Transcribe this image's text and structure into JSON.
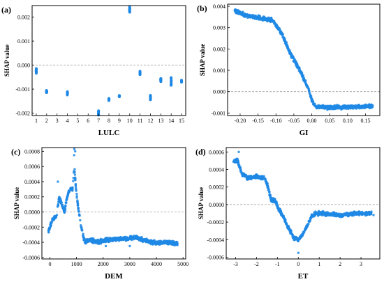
{
  "colors": {
    "point": "#1e88e5",
    "zero_line": "#9e9e9e",
    "axis": "#000000"
  },
  "chart_data": [
    {
      "id": "a",
      "type": "scatter",
      "panel_label": "(a)",
      "xlabel": "LULC",
      "ylabel": "SHAP value",
      "xlim": [
        0.6,
        15.4
      ],
      "ylim": [
        -0.0021,
        0.00248
      ],
      "xticks": [
        1,
        2,
        3,
        4,
        5,
        6,
        7,
        8,
        9,
        10,
        11,
        12,
        13,
        14,
        15
      ],
      "xtick_labels": [
        "1",
        "2",
        "3",
        "4",
        "5",
        "6",
        "7",
        "8",
        "9",
        "10",
        "11",
        "12",
        "13",
        "14",
        "15"
      ],
      "yticks": [
        -0.002,
        -0.001,
        0.0,
        0.001,
        0.002
      ],
      "ytick_labels": [
        "-0.002",
        "-0.001",
        "0.000",
        "0.001",
        "0.002"
      ],
      "zero_line": true,
      "clusters": [
        {
          "x": 1,
          "y_min": -0.00035,
          "y_max": -0.00013
        },
        {
          "x": 2,
          "y_min": -0.00115,
          "y_max": -0.00105
        },
        {
          "x": 4,
          "y_min": -0.00125,
          "y_max": -0.0011
        },
        {
          "x": 7,
          "y_min": -0.0021,
          "y_max": -0.0019
        },
        {
          "x": 8,
          "y_min": -0.00148,
          "y_max": -0.00138
        },
        {
          "x": 9,
          "y_min": -0.00132,
          "y_max": -0.00126
        },
        {
          "x": 10,
          "y_min": 0.0022,
          "y_max": 0.00245
        },
        {
          "x": 11,
          "y_min": -0.0004,
          "y_max": -0.00025
        },
        {
          "x": 12,
          "y_min": -0.00145,
          "y_max": -0.00125
        },
        {
          "x": 13,
          "y_min": -0.0007,
          "y_max": -0.00055
        },
        {
          "x": 14,
          "y_min": -0.00085,
          "y_max": -0.0005
        },
        {
          "x": 15,
          "y_min": -0.00072,
          "y_max": -0.00062
        }
      ]
    },
    {
      "id": "b",
      "type": "scatter",
      "panel_label": "(b)",
      "xlabel": "GI",
      "ylabel": "SHAP value",
      "xlim": [
        -0.235,
        0.19
      ],
      "ylim": [
        -0.00112,
        0.0041
      ],
      "xticks": [
        -0.2,
        -0.15,
        -0.1,
        -0.05,
        0.0,
        0.05,
        0.1,
        0.15
      ],
      "xtick_labels": [
        "-0.20",
        "-0.15",
        "-0.10",
        "-0.05",
        "0.00",
        "0.05",
        "0.10",
        "0.15"
      ],
      "yticks": [
        -0.001,
        0.0,
        0.001,
        0.002,
        0.003,
        0.004
      ],
      "ytick_labels": [
        "-0.001",
        "0.000",
        "0.001",
        "0.002",
        "0.003",
        "0.004"
      ],
      "zero_line": true,
      "curve": [
        [
          -0.215,
          0.0038
        ],
        [
          -0.19,
          0.0036
        ],
        [
          -0.16,
          0.0035
        ],
        [
          -0.13,
          0.0034
        ],
        [
          -0.11,
          0.00335
        ],
        [
          -0.1,
          0.0031
        ],
        [
          -0.09,
          0.0029
        ],
        [
          -0.08,
          0.0026
        ],
        [
          -0.07,
          0.0022
        ],
        [
          -0.06,
          0.0018
        ],
        [
          -0.05,
          0.0015
        ],
        [
          -0.04,
          0.0012
        ],
        [
          -0.03,
          0.0009
        ],
        [
          -0.02,
          0.0005
        ],
        [
          -0.01,
          0.0002
        ],
        [
          0.0,
          -0.0004
        ],
        [
          0.01,
          -0.0007
        ],
        [
          0.05,
          -0.00075
        ],
        [
          0.1,
          -0.00072
        ],
        [
          0.13,
          -0.0007
        ],
        [
          0.17,
          -0.00068
        ]
      ],
      "outliers": [
        [
          -0.215,
          0.0038
        ],
        [
          -0.205,
          0.0037
        ],
        [
          0.12,
          -0.00072
        ],
        [
          0.14,
          -0.0007
        ],
        [
          0.165,
          -0.00062
        ]
      ]
    },
    {
      "id": "c",
      "type": "scatter",
      "panel_label": "(c)",
      "xlabel": "DEM",
      "ylabel": "SHAP value",
      "xlim": [
        -300,
        5100
      ],
      "ylim": [
        -0.00062,
        0.00085
      ],
      "xticks": [
        0,
        1000,
        2000,
        3000,
        4000,
        5000
      ],
      "xtick_labels": [
        "0",
        "1000",
        "2000",
        "3000",
        "4000",
        "5000"
      ],
      "yticks": [
        -0.0006,
        -0.0004,
        -0.0002,
        0.0,
        0.0002,
        0.0004,
        0.0006,
        0.0008
      ],
      "ytick_labels": [
        "-0.0006",
        "-0.0004",
        "-0.0002",
        "0.0000",
        "0.0002",
        "0.0004",
        "0.0006",
        "0.0008"
      ],
      "zero_line": true,
      "curve": [
        [
          -50,
          -0.00025
        ],
        [
          100,
          -0.0001
        ],
        [
          250,
          -5e-05
        ],
        [
          350,
          0.0002
        ],
        [
          450,
          0.0001
        ],
        [
          550,
          0.0
        ],
        [
          650,
          0.0002
        ],
        [
          750,
          0.0003
        ],
        [
          850,
          0.0003
        ],
        [
          920,
          0.0006
        ],
        [
          980,
          0.0003
        ],
        [
          1050,
          0.0001
        ],
        [
          1150,
          -0.00015
        ],
        [
          1300,
          -0.0004
        ],
        [
          1500,
          -0.00036
        ],
        [
          1800,
          -0.0004
        ],
        [
          2100,
          -0.00037
        ],
        [
          2500,
          -0.00036
        ],
        [
          2900,
          -0.00035
        ],
        [
          3200,
          -0.00033
        ],
        [
          3600,
          -0.00038
        ],
        [
          4000,
          -0.00041
        ],
        [
          4400,
          -0.0004
        ],
        [
          4800,
          -0.00042
        ]
      ],
      "outliers": [
        [
          920,
          0.00083
        ],
        [
          950,
          0.0008
        ],
        [
          910,
          0.00075
        ],
        [
          300,
          0.0004
        ],
        [
          2100,
          -0.00045
        ],
        [
          3000,
          -0.00045
        ]
      ]
    },
    {
      "id": "d",
      "type": "scatter",
      "panel_label": "(d)",
      "xlabel": "ET",
      "ylabel": "SHAP value",
      "xlim": [
        -3.45,
        3.9
      ],
      "ylim": [
        -0.00062,
        0.00065
      ],
      "xticks": [
        -3,
        -2,
        -1,
        0,
        1,
        2,
        3
      ],
      "xtick_labels": [
        "-3",
        "-2",
        "-1",
        "0",
        "1",
        "2",
        "3"
      ],
      "yticks": [
        -0.0006,
        -0.0004,
        -0.0002,
        0.0,
        0.0002,
        0.0004,
        0.0006
      ],
      "ytick_labels": [
        "-0.0006",
        "-0.0004",
        "-0.0002",
        "0.0000",
        "0.0002",
        "0.0004",
        "0.0006"
      ],
      "zero_line": true,
      "curve": [
        [
          -3.1,
          0.0005
        ],
        [
          -2.9,
          0.0005
        ],
        [
          -2.7,
          0.00035
        ],
        [
          -2.4,
          0.0003
        ],
        [
          -2.0,
          0.00032
        ],
        [
          -1.6,
          0.0003
        ],
        [
          -1.45,
          0.0002
        ],
        [
          -1.3,
          5e-05
        ],
        [
          -1.1,
          5e-05
        ],
        [
          -0.95,
          -5e-05
        ],
        [
          -0.8,
          -0.0001
        ],
        [
          -0.6,
          -0.0002
        ],
        [
          -0.4,
          -0.0003
        ],
        [
          -0.2,
          -0.00038
        ],
        [
          0.0,
          -0.0004
        ],
        [
          0.2,
          -0.00035
        ],
        [
          0.4,
          -0.00025
        ],
        [
          0.6,
          -0.00015
        ],
        [
          0.8,
          -0.0001
        ],
        [
          1.2,
          -0.0001
        ],
        [
          2.0,
          -0.00012
        ],
        [
          2.8,
          -0.0001
        ],
        [
          3.5,
          -0.0001
        ]
      ],
      "outliers": [
        [
          -2.85,
          0.0006
        ],
        [
          0.0,
          -0.00055
        ],
        [
          3.6,
          -0.00012
        ],
        [
          2.9,
          -8e-05
        ]
      ]
    }
  ]
}
